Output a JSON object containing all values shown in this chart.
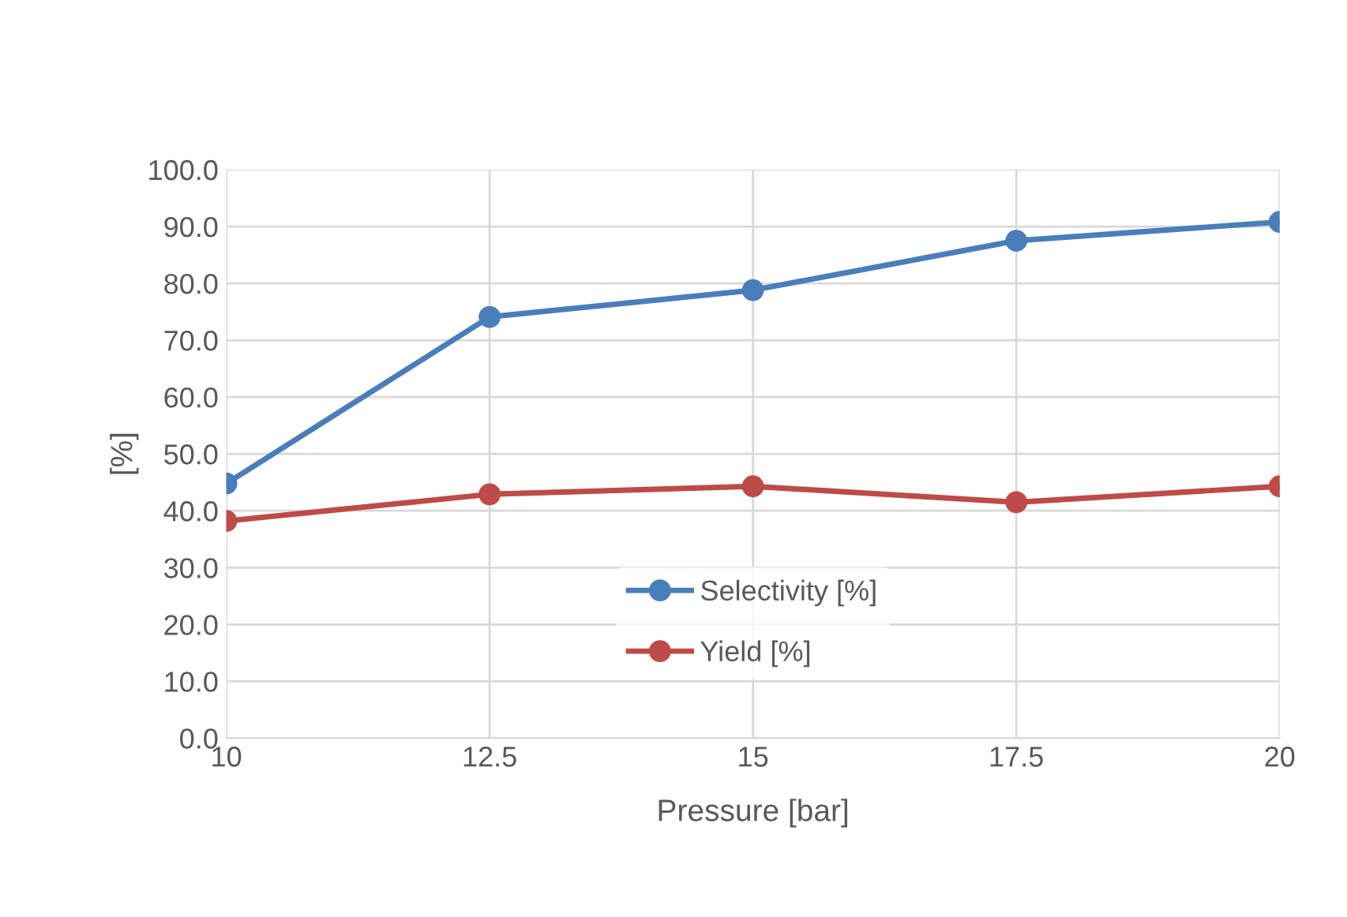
{
  "chart_data": {
    "type": "line",
    "xlabel": "Pressure [bar]",
    "ylabel": "[%]",
    "x": [
      10,
      12.5,
      15,
      17.5,
      20
    ],
    "series": [
      {
        "name": "Selectivity [%]",
        "color": "#4a7ebb",
        "values": [
          44.8,
          74.1,
          78.8,
          87.5,
          90.8
        ]
      },
      {
        "name": "Yield [%]",
        "color": "#be4b48",
        "values": [
          38.2,
          42.9,
          44.3,
          41.5,
          44.3
        ]
      }
    ],
    "xlim": [
      10,
      20
    ],
    "xticks": [
      10,
      12.5,
      15,
      17.5,
      20
    ],
    "ylim": [
      0,
      100
    ],
    "yticks": [
      {
        "value": 0,
        "label": "0.0"
      },
      {
        "value": 10,
        "label": "10.0"
      },
      {
        "value": 20,
        "label": "20.0"
      },
      {
        "value": 30,
        "label": "30.0"
      },
      {
        "value": 40,
        "label": "40.0"
      },
      {
        "value": 50,
        "label": "50.0"
      },
      {
        "value": 60,
        "label": "60.0"
      },
      {
        "value": 70,
        "label": "70.0"
      },
      {
        "value": 80,
        "label": "80.0"
      },
      {
        "value": 90,
        "label": "90.0"
      },
      {
        "value": 100,
        "label": "100.0"
      }
    ],
    "grid": true,
    "legend": "bottom",
    "marker": "circle",
    "line_style": "solid"
  }
}
